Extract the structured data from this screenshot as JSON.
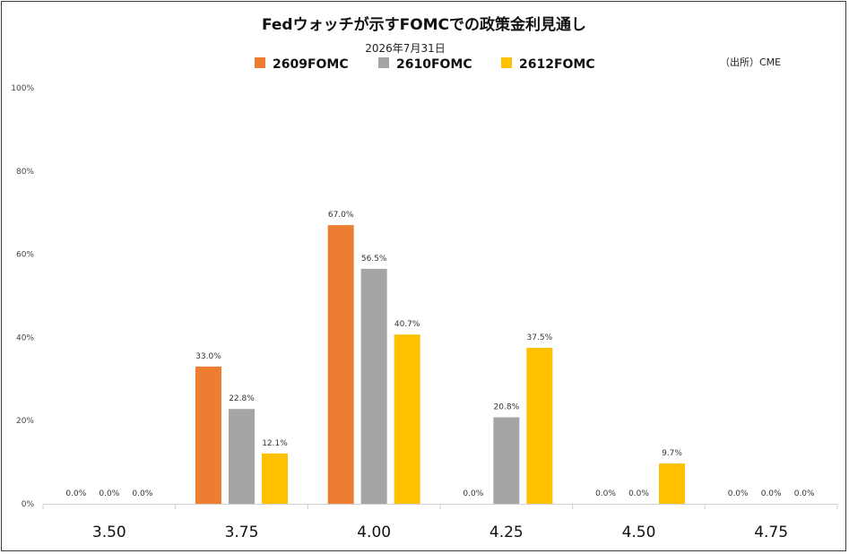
{
  "chart_data": {
    "type": "bar",
    "title": "Fedウォッチが示すFOMCでの政策金利見通し",
    "subtitle": "2026年7月31日",
    "source": "（出所）CME",
    "categories": [
      "3.50",
      "3.75",
      "4.00",
      "4.25",
      "4.50",
      "4.75"
    ],
    "ylim": [
      0,
      100
    ],
    "yticks": [
      "0%",
      "20%",
      "40%",
      "60%",
      "80%",
      "100%"
    ],
    "grid": false,
    "legend_position": "top",
    "series": [
      {
        "name": "2609FOMC",
        "color": "#ED7D31",
        "values": [
          0.0,
          33.0,
          67.0,
          0.0,
          0.0,
          0.0
        ],
        "labels": [
          "0.0%",
          "33.0%",
          "67.0%",
          "",
          "0.0%",
          "0.0%"
        ]
      },
      {
        "name": "2610FOMC",
        "color": "#A5A5A5",
        "values": [
          0.0,
          22.8,
          56.5,
          20.8,
          0.0,
          0.0
        ],
        "labels": [
          "0.0%",
          "22.8%",
          "56.5%",
          "20.8%",
          "0.0%",
          "0.0%"
        ]
      },
      {
        "name": "2612FOMC",
        "color": "#FFC000",
        "values": [
          0.0,
          12.1,
          40.7,
          37.5,
          9.7,
          0.0
        ],
        "labels": [
          "0.0%",
          "12.1%",
          "40.7%",
          "37.5%",
          "9.7%",
          "0.0%"
        ]
      }
    ],
    "extra_labels": [
      {
        "category_index": 3,
        "text": "0.0%"
      }
    ]
  }
}
